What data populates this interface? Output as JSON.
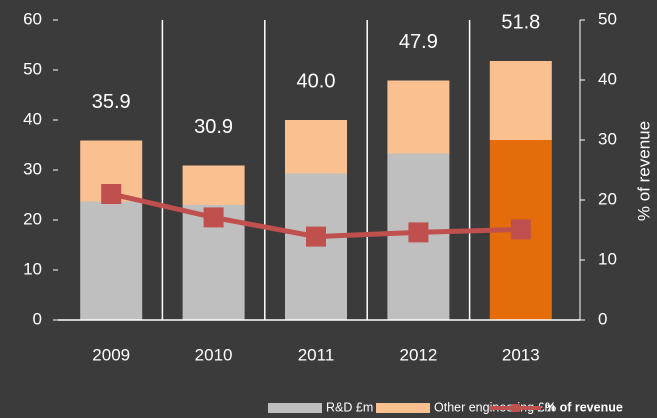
{
  "chart_data": {
    "type": "bar-line",
    "categories": [
      "2009",
      "2010",
      "2011",
      "2012",
      "2013"
    ],
    "series": [
      {
        "name": "R&D £m",
        "color": "#bfbfbf",
        "colors": [
          "#bfbfbf",
          "#bfbfbf",
          "#bfbfbf",
          "#bfbfbf",
          "#e46c0a"
        ],
        "values": [
          23.7,
          23.0,
          29.3,
          33.3,
          36.0
        ]
      },
      {
        "name": "Other engineering £m",
        "color": "#fac090",
        "values": [
          12.2,
          7.9,
          10.7,
          14.6,
          15.8
        ]
      },
      {
        "name": "% of revenue",
        "color": "#c0504d",
        "axis": "y2",
        "values": [
          21.0,
          17.1,
          13.9,
          14.6,
          15.1
        ]
      }
    ],
    "totals": [
      35.9,
      30.9,
      40,
      47.9,
      51.8
    ],
    "total_labels": [
      "35.9",
      "30.9",
      "40.0",
      "47.9",
      "51.8"
    ],
    "ylim": [
      0,
      60
    ],
    "yticks": [
      0,
      10,
      20,
      30,
      40,
      50,
      60
    ],
    "y2lim": [
      0,
      50
    ],
    "y2ticks": [
      0,
      10,
      20,
      30,
      40,
      50
    ],
    "y2label": "% of revenue"
  }
}
